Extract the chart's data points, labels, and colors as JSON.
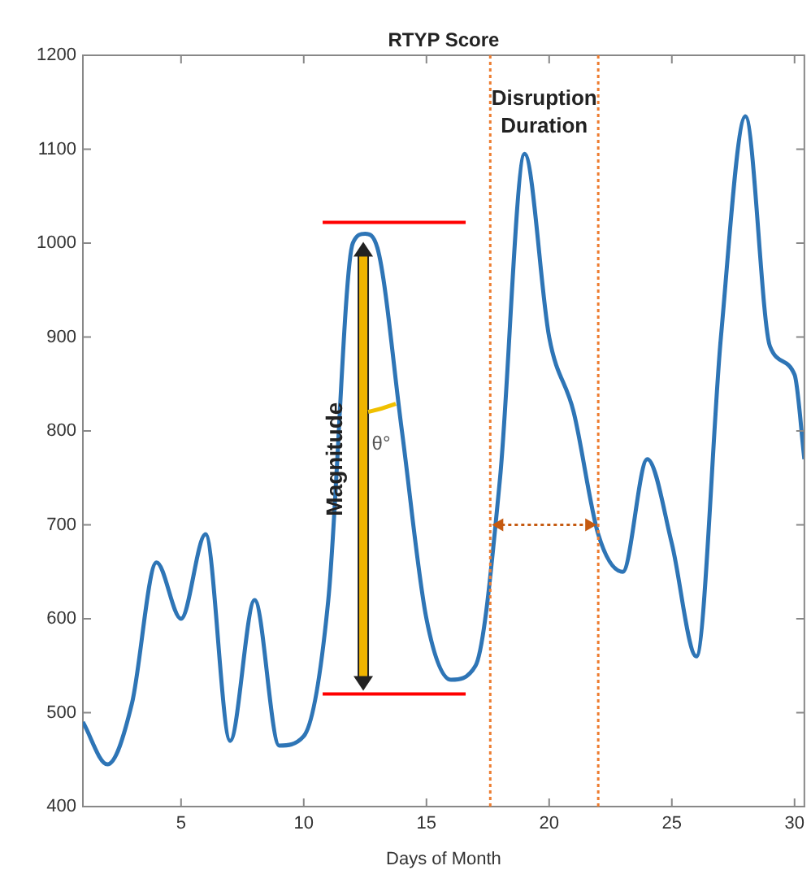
{
  "chart_data": {
    "type": "line",
    "title": "RTYP Score",
    "xlabel": "Days of Month",
    "x": [
      1,
      2,
      3,
      4,
      5,
      6,
      7,
      8,
      9,
      10,
      11,
      12,
      12.5,
      13,
      14,
      15,
      16,
      17,
      18,
      19,
      20,
      21,
      22,
      23,
      24,
      25,
      26,
      27,
      28,
      29,
      30,
      30.4
    ],
    "series": [
      {
        "color": "#2e75b6",
        "values": [
          490,
          445,
          510,
          660,
          600,
          690,
          470,
          620,
          465,
          475,
          620,
          1000,
          1010,
          995,
          800,
          600,
          535,
          550,
          750,
          1095,
          900,
          820,
          690,
          650,
          770,
          680,
          560,
          900,
          1135,
          890,
          860,
          770
        ]
      }
    ],
    "xlim": [
      1,
      30.4
    ],
    "xticks": [
      5,
      10,
      15,
      20,
      25,
      30
    ],
    "ylim": [
      400,
      1200
    ],
    "yticks": [
      400,
      500,
      600,
      700,
      800,
      900,
      1000,
      1100,
      1200
    ],
    "ref_lines": [
      {
        "axis": "y",
        "value": 1022,
        "color": "#ff0000",
        "line_style": "solid"
      },
      {
        "axis": "y",
        "value": 520,
        "color": "#ff0000",
        "line_style": "solid"
      },
      {
        "axis": "x",
        "value": 17.6,
        "color": "#ed7d31",
        "line_style": "dotted"
      },
      {
        "axis": "x",
        "value": 22,
        "color": "#ed7d31",
        "line_style": "dotted"
      }
    ],
    "annotations": [
      {
        "text": "Magnitude",
        "x": 11.3,
        "y": 770
      },
      "θ°",
      "Disruption Duration"
    ],
    "grid": false,
    "legend": false,
    "marker": "none",
    "line_style": "solid"
  }
}
